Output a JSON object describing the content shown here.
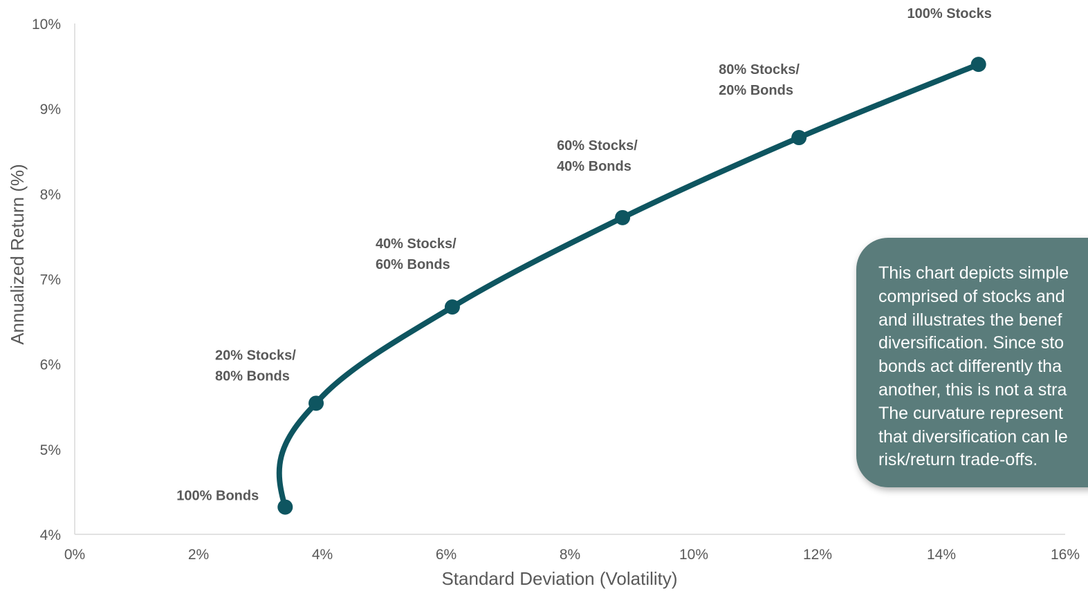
{
  "chart_data": {
    "type": "line",
    "title": "",
    "xlabel": "Standard Deviation (Volatility)",
    "ylabel": "Annualized Return (%)",
    "xlim": [
      0,
      16
    ],
    "ylim": [
      4,
      10
    ],
    "x_ticks": [
      "0%",
      "2%",
      "4%",
      "6%",
      "8%",
      "10%",
      "12%",
      "14%",
      "16%"
    ],
    "y_ticks": [
      "4%",
      "5%",
      "6%",
      "7%",
      "8%",
      "9%",
      "10%"
    ],
    "grid": false,
    "line_color": "#0e5560",
    "series": [
      {
        "points": [
          {
            "x": 3.4,
            "y": 4.32,
            "label": [
              "100% Bonds"
            ]
          },
          {
            "x": 3.9,
            "y": 5.54,
            "label": [
              "20% Stocks/",
              "80% Bonds"
            ]
          },
          {
            "x": 6.1,
            "y": 6.67,
            "label": [
              "40% Stocks/",
              "60% Bonds"
            ]
          },
          {
            "x": 8.85,
            "y": 7.72,
            "label": [
              "60% Stocks/",
              "40% Bonds"
            ]
          },
          {
            "x": 11.7,
            "y": 8.66,
            "label": [
              "80% Stocks/",
              "20% Bonds"
            ]
          },
          {
            "x": 14.6,
            "y": 9.52,
            "label": [
              "100% Stocks"
            ]
          }
        ]
      }
    ]
  },
  "callout": {
    "background": "#5a7c7b",
    "lines": [
      "This chart depicts simple",
      "comprised of stocks and",
      "and illustrates the benef",
      "diversification. Since sto",
      "bonds act differently tha",
      "another, this is not a stra",
      "The curvature represent",
      "that diversification can le",
      "risk/return trade-offs."
    ]
  }
}
